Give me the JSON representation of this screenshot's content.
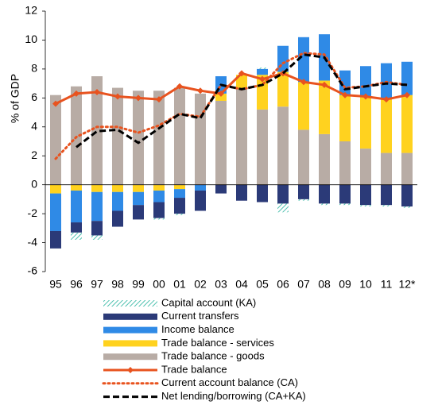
{
  "chart_data": {
    "type": "bar",
    "y_label": "% of GDP",
    "categories": [
      "95",
      "96",
      "97",
      "98",
      "99",
      "00",
      "01",
      "02",
      "03",
      "04",
      "05",
      "06",
      "07",
      "08",
      "09",
      "10",
      "11",
      "12*"
    ],
    "ylim": [
      -6,
      12
    ],
    "yticks": [
      -6,
      -4,
      -2,
      0,
      2,
      4,
      6,
      8,
      10,
      12
    ],
    "grid": false,
    "legend": "bottom",
    "series": [
      {
        "name": "Capital account (KA)",
        "type": "bar",
        "color": "#4fc1b0",
        "hatch": true,
        "values": [
          0,
          -0.5,
          -0.3,
          0,
          0,
          -0.1,
          -0.1,
          0,
          0,
          0,
          0.1,
          -0.6,
          -0.1,
          -0.1,
          -0.1,
          -0.1,
          -0.1,
          -0.1
        ]
      },
      {
        "name": "Current transfers",
        "type": "bar",
        "color": "#2b3a78",
        "values": [
          -1.2,
          -0.7,
          -1.0,
          -1.1,
          -1.0,
          -1.1,
          -1.1,
          -1.4,
          -0.6,
          -1.1,
          -1.2,
          -1.3,
          -1.0,
          -1.3,
          -1.3,
          -1.4,
          -1.4,
          -1.5
        ]
      },
      {
        "name": "Income balance",
        "type": "bar",
        "color": "#2f8ae6",
        "values": [
          -2.6,
          -2.2,
          -2.0,
          -1.3,
          -0.9,
          -0.8,
          -0.6,
          -0.4,
          1.2,
          0,
          0.4,
          1.8,
          3.1,
          3.2,
          1.7,
          2.1,
          2.5,
          2.3
        ]
      },
      {
        "name": "Trade balance - services",
        "type": "bar",
        "color": "#ffd21f",
        "values": [
          -0.6,
          -0.4,
          -0.5,
          -0.5,
          -0.5,
          -0.4,
          -0.3,
          0,
          0.5,
          1.0,
          2.4,
          2.4,
          3.3,
          3.7,
          3.2,
          3.6,
          3.7,
          4.0
        ]
      },
      {
        "name": "Trade balance - goods",
        "type": "bar",
        "color": "#b8aca5",
        "values": [
          6.2,
          6.8,
          7.5,
          6.7,
          6.5,
          6.5,
          6.7,
          6.3,
          5.8,
          6.6,
          5.2,
          5.4,
          3.8,
          3.5,
          3.0,
          2.5,
          2.2,
          2.2
        ]
      },
      {
        "name": "Trade balance",
        "type": "line",
        "color": "#e8531f",
        "style": "solid",
        "marker": "diamond",
        "values": [
          5.6,
          6.3,
          6.4,
          6.1,
          6.0,
          5.9,
          6.8,
          6.5,
          6.3,
          7.7,
          7.3,
          7.7,
          7.1,
          6.9,
          6.2,
          6.1,
          5.9,
          6.2
        ]
      },
      {
        "name": "Current account balance (CA)",
        "type": "line",
        "color": "#e8531f",
        "style": "dotted",
        "values": [
          1.8,
          3.3,
          4.0,
          4.0,
          3.6,
          4.1,
          4.9,
          4.7,
          6.9,
          6.6,
          6.9,
          8.4,
          9.1,
          9.0,
          6.7,
          6.8,
          7.1,
          6.9
        ]
      },
      {
        "name": "Net lending/borrowing (CA+KA)",
        "type": "line",
        "color": "#000000",
        "style": "dashed",
        "values": [
          null,
          2.6,
          3.7,
          3.8,
          2.9,
          3.9,
          4.9,
          4.6,
          6.9,
          6.6,
          6.9,
          7.7,
          9.0,
          8.8,
          6.6,
          6.8,
          7.0,
          6.9
        ]
      }
    ]
  }
}
